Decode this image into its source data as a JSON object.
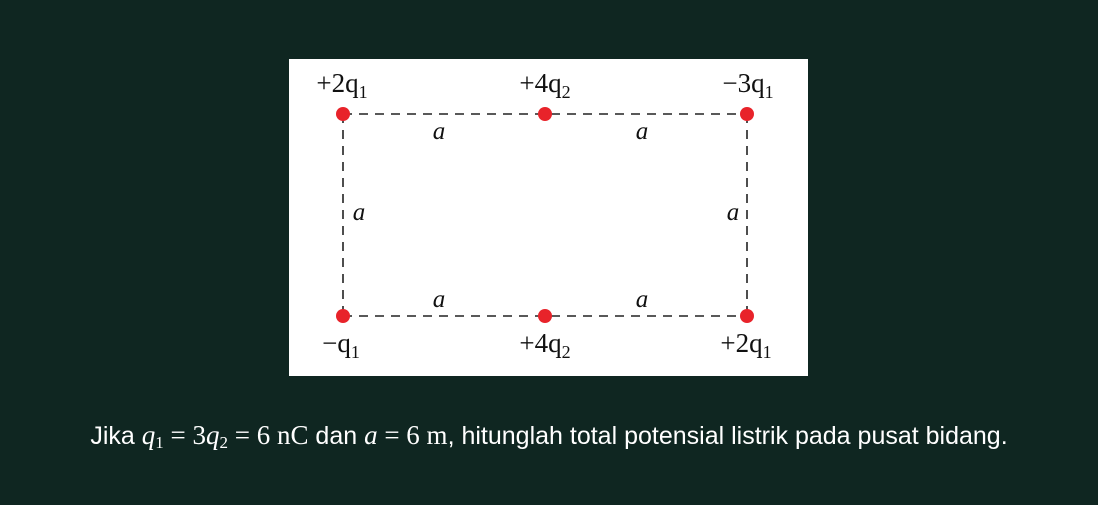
{
  "charges": {
    "top_left": "+2q",
    "top_left_sub": "1",
    "top_middle": "+4q",
    "top_middle_sub": "2",
    "top_right": "−3q",
    "top_right_sub": "1",
    "bottom_left": "−q",
    "bottom_left_sub": "1",
    "bottom_middle": "+4q",
    "bottom_middle_sub": "2",
    "bottom_right": "+2q",
    "bottom_right_sub": "1"
  },
  "side_labels": {
    "top_left_segment": "a",
    "top_right_segment": "a",
    "left_side": "a",
    "right_side": "a",
    "bottom_left_segment": "a",
    "bottom_right_segment": "a"
  },
  "colors": {
    "background": "#0f2621",
    "panel": "#ffffff",
    "charge_dot": "#e8232a",
    "text": "#ffffff"
  },
  "question": {
    "prefix": "Jika ",
    "q_var": "q",
    "q_sub": "1",
    "eq1": " = 3",
    "q2_var": "q",
    "q2_sub": "2",
    "eq2": " = 6 nC",
    "middle": " dan ",
    "a_var": "a",
    "eq3": " = 6 m",
    "suffix": ", hitunglah total potensial listrik pada pusat bidang."
  }
}
